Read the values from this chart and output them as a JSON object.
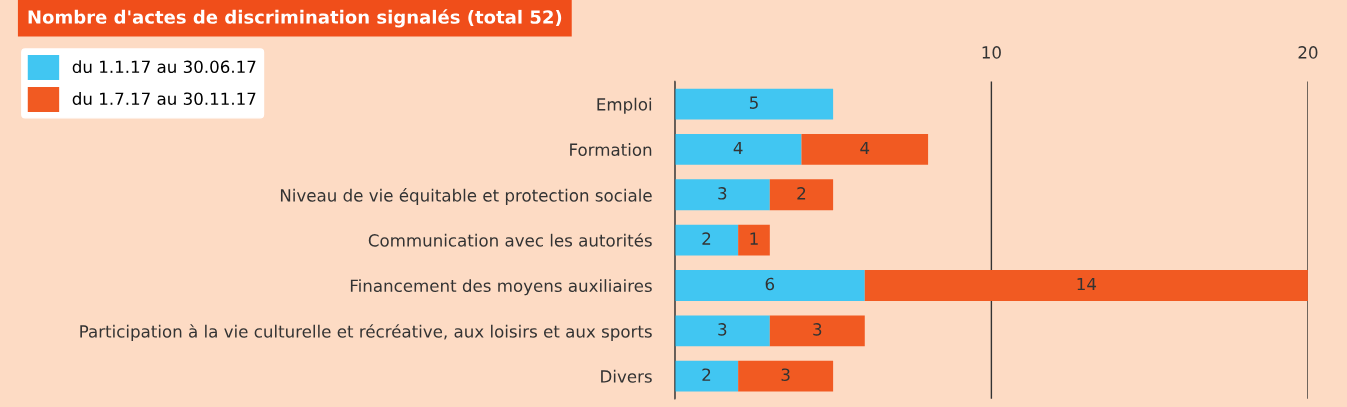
{
  "chart_data": {
    "type": "bar",
    "orientation": "horizontal",
    "stacked": true,
    "title": "Nombre d'actes de discrimination signalés (total 52)",
    "categories": [
      "Emploi",
      "Formation",
      "Niveau de vie équitable et protection sociale",
      "Communication avec les autorités",
      "Financement des moyens auxiliaires",
      "Participation à la vie culturelle et récréative, aux loisirs et aux sports",
      "Divers"
    ],
    "series": [
      {
        "name": "du 1.1.17 au 30.06.17",
        "color": "#41c6f2",
        "values": [
          5,
          4,
          3,
          2,
          6,
          3,
          2
        ]
      },
      {
        "name": "du 1.7.17 au 30.11.17",
        "color": "#f15a22",
        "values": [
          null,
          4,
          2,
          1,
          14,
          3,
          3
        ]
      }
    ],
    "xlim": [
      0,
      20
    ],
    "xticks": [
      {
        "value": 0,
        "label": null
      },
      10,
      20
    ],
    "grid": "x",
    "legend": "left",
    "data_labels": true
  }
}
